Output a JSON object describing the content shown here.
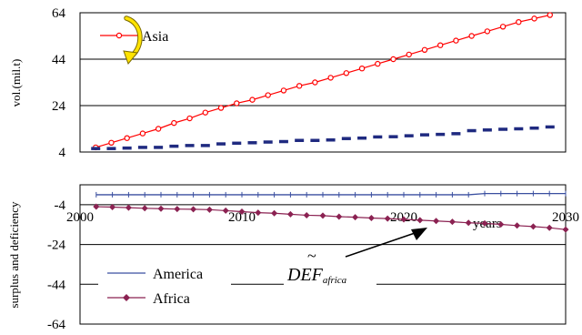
{
  "chart_data": [
    {
      "type": "line",
      "ylabel": "vol.(mil.t)",
      "yticks": [
        "4",
        "24",
        "44",
        "64"
      ],
      "ylim": [
        4,
        64
      ],
      "x": [
        2001,
        2002,
        2003,
        2004,
        2005,
        2006,
        2007,
        2008,
        2009,
        2010,
        2011,
        2012,
        2013,
        2014,
        2015,
        2016,
        2017,
        2018,
        2019,
        2020,
        2021,
        2022,
        2023,
        2024,
        2025,
        2026,
        2027,
        2028,
        2029,
        2030
      ],
      "xlim": [
        2000,
        2031
      ],
      "grid": true,
      "series": [
        {
          "name": "Asia",
          "color": "#ff0000",
          "marker": "circle-open",
          "values": [
            6.0,
            8.0,
            10.0,
            12.0,
            14.0,
            16.5,
            18.5,
            21.0,
            23.0,
            25.0,
            26.5,
            28.5,
            30.5,
            32.5,
            34.0,
            36.0,
            38.0,
            40.0,
            42.0,
            44.0,
            46.0,
            48.0,
            50.0,
            52.0,
            54.0,
            56.0,
            58.0,
            60.0,
            61.5,
            63.0
          ]
        },
        {
          "name": "",
          "color": "#1f2a80",
          "marker": "dash",
          "values": [
            5.5,
            5.5,
            5.7,
            6.0,
            6.0,
            6.5,
            6.8,
            6.8,
            7.5,
            7.8,
            8.0,
            8.3,
            8.5,
            9.0,
            9.0,
            9.2,
            9.8,
            10.0,
            10.5,
            10.6,
            11.0,
            11.4,
            11.6,
            11.9,
            13.2,
            13.5,
            13.8,
            14.0,
            14.3,
            14.8
          ]
        }
      ],
      "legend": "top-left"
    },
    {
      "type": "line",
      "ylabel": "surplus and deficiency",
      "yticks": [
        "-4",
        "-24",
        "-44",
        "-64"
      ],
      "ylim": [
        -64,
        6
      ],
      "x": [
        2001,
        2002,
        2003,
        2004,
        2005,
        2006,
        2007,
        2008,
        2009,
        2010,
        2011,
        2012,
        2013,
        2014,
        2015,
        2016,
        2017,
        2018,
        2019,
        2020,
        2021,
        2022,
        2023,
        2024,
        2025,
        2026,
        2027,
        2028,
        2029,
        2030
      ],
      "xlim": [
        2000,
        2030
      ],
      "xticks": [
        "2000",
        "2010",
        "2020",
        "2030"
      ],
      "xlabel": "years",
      "grid": true,
      "series": [
        {
          "name": "America",
          "color": "#3a4fa0",
          "marker": "tick",
          "values": [
            1.0,
            1.0,
            1.0,
            1.0,
            1.0,
            1.0,
            1.0,
            1.0,
            1.0,
            1.0,
            1.0,
            1.0,
            1.0,
            1.0,
            1.0,
            1.0,
            1.0,
            1.0,
            1.0,
            1.0,
            1.0,
            1.0,
            1.0,
            1.0,
            1.6,
            1.6,
            1.6,
            1.6,
            1.6,
            1.6
          ]
        },
        {
          "name": "Africa",
          "color": "#8b2252",
          "marker": "diamond",
          "values": [
            -5.0,
            -5.2,
            -5.5,
            -5.8,
            -6.0,
            -6.2,
            -6.3,
            -6.5,
            -7.0,
            -7.5,
            -8.0,
            -8.3,
            -8.8,
            -9.3,
            -9.5,
            -10.0,
            -10.3,
            -10.7,
            -11.0,
            -11.4,
            -11.8,
            -12.2,
            -12.6,
            -13.1,
            -13.4,
            -13.9,
            -14.5,
            -15.0,
            -15.6,
            -16.5
          ]
        }
      ],
      "legend": "bottom-left",
      "annotation": {
        "text": "DEF",
        "subscript": "africa",
        "accent": "~"
      }
    }
  ]
}
